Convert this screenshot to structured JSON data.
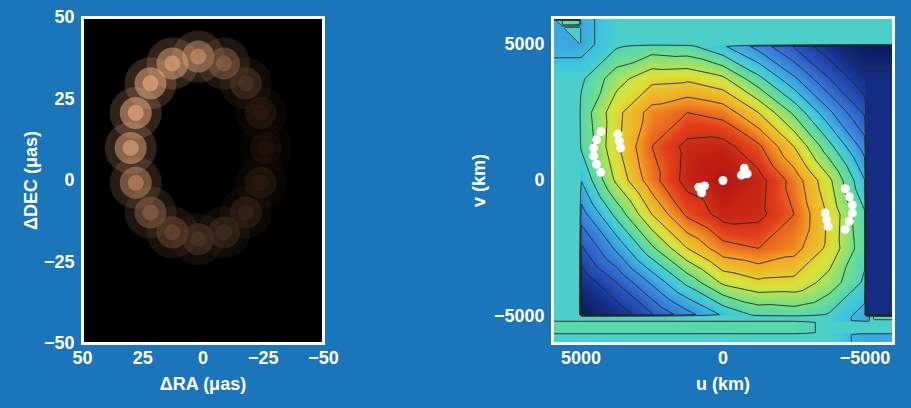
{
  "chart_data": [
    {
      "type": "image",
      "xlabel": "ΔRA (μas)",
      "ylabel": "ΔDEC (μas)",
      "xlim": [
        50,
        -50
      ],
      "xticks": [
        50,
        25,
        0,
        -25,
        -50
      ],
      "ylim": [
        -50,
        50
      ],
      "yticks": [
        -50,
        -25,
        0,
        25,
        50
      ],
      "color": "#f2b183",
      "points": {
        "x": [
          2,
          12.7,
          21.8,
          27.9,
          30,
          27.9,
          21.8,
          12.7,
          2,
          -8.7,
          -17.8,
          -23.9,
          -26,
          -23.9,
          -17.8,
          -8.7
        ],
        "y": [
          38,
          35.9,
          29.8,
          20.7,
          10,
          -0.7,
          -9.8,
          -15.9,
          -18,
          -15.9,
          -9.8,
          -0.7,
          10,
          20.7,
          29.8,
          35.9
        ],
        "brightness": [
          0.85,
          0.95,
          1,
          1,
          0.95,
          0.8,
          0.6,
          0.45,
          0.35,
          0.3,
          0.25,
          0.2,
          0.15,
          0.2,
          0.35,
          0.6
        ]
      }
    },
    {
      "type": "heatmap",
      "xlabel": "u (km)",
      "ylabel": "v (km)",
      "xlim": [
        6000,
        -6000
      ],
      "xticks": [
        5000,
        0,
        -5000
      ],
      "ylim": [
        -6000,
        6000
      ],
      "yticks": [
        -5000,
        0,
        5000
      ],
      "cells": {
        "x": [
          -5000,
          -3750,
          -2500,
          -1250,
          0,
          1250,
          2500,
          3750,
          5000
        ],
        "y": [
          5000,
          3750,
          2500,
          1250,
          0,
          -1250,
          -2500,
          -3750,
          -5000
        ],
        "values": [
          [
            -0.37,
            -0.28,
            -0.12,
            0.05,
            0.2,
            0.31,
            0.33,
            0.28,
            0.15
          ],
          [
            -0.28,
            -0.1,
            0.12,
            0.33,
            0.52,
            0.58,
            0.57,
            0.46,
            0.28
          ],
          [
            -0.12,
            0.12,
            0.38,
            0.6,
            0.76,
            0.8,
            0.74,
            0.57,
            0.33
          ],
          [
            0.05,
            0.33,
            0.6,
            0.82,
            0.94,
            0.93,
            0.8,
            0.58,
            0.31
          ],
          [
            0.2,
            0.52,
            0.76,
            0.94,
            1,
            0.94,
            0.76,
            0.52,
            0.2
          ],
          [
            0.31,
            0.58,
            0.8,
            0.93,
            0.94,
            0.82,
            0.6,
            0.33,
            0.05
          ],
          [
            0.33,
            0.57,
            0.74,
            0.8,
            0.76,
            0.6,
            0.38,
            0.12,
            -0.12
          ],
          [
            0.28,
            0.46,
            0.57,
            0.58,
            0.52,
            0.33,
            0.12,
            -0.1,
            -0.28
          ],
          [
            0.15,
            0.28,
            0.33,
            0.31,
            0.2,
            0.05,
            -0.12,
            -0.28,
            -0.37
          ]
        ]
      },
      "series": [
        {
          "color": "#ffffff",
          "marker": "circle",
          "x": [
            4300,
            4450,
            4550,
            4550,
            4450,
            4300,
            3700,
            3650,
            3600,
            -4300,
            -4450,
            -4550,
            -4550,
            -4450,
            -4300,
            -3700,
            -3650,
            -3600,
            0,
            850,
            750,
            650,
            -850,
            -750,
            -650
          ],
          "values": [
            1800,
            1500,
            1200,
            900,
            600,
            300,
            1700,
            1450,
            1200,
            -1800,
            -1500,
            -1200,
            -900,
            -600,
            -300,
            -1700,
            -1450,
            -1200,
            0,
            -250,
            -450,
            -200,
            250,
            450,
            200
          ]
        }
      ]
    }
  ]
}
